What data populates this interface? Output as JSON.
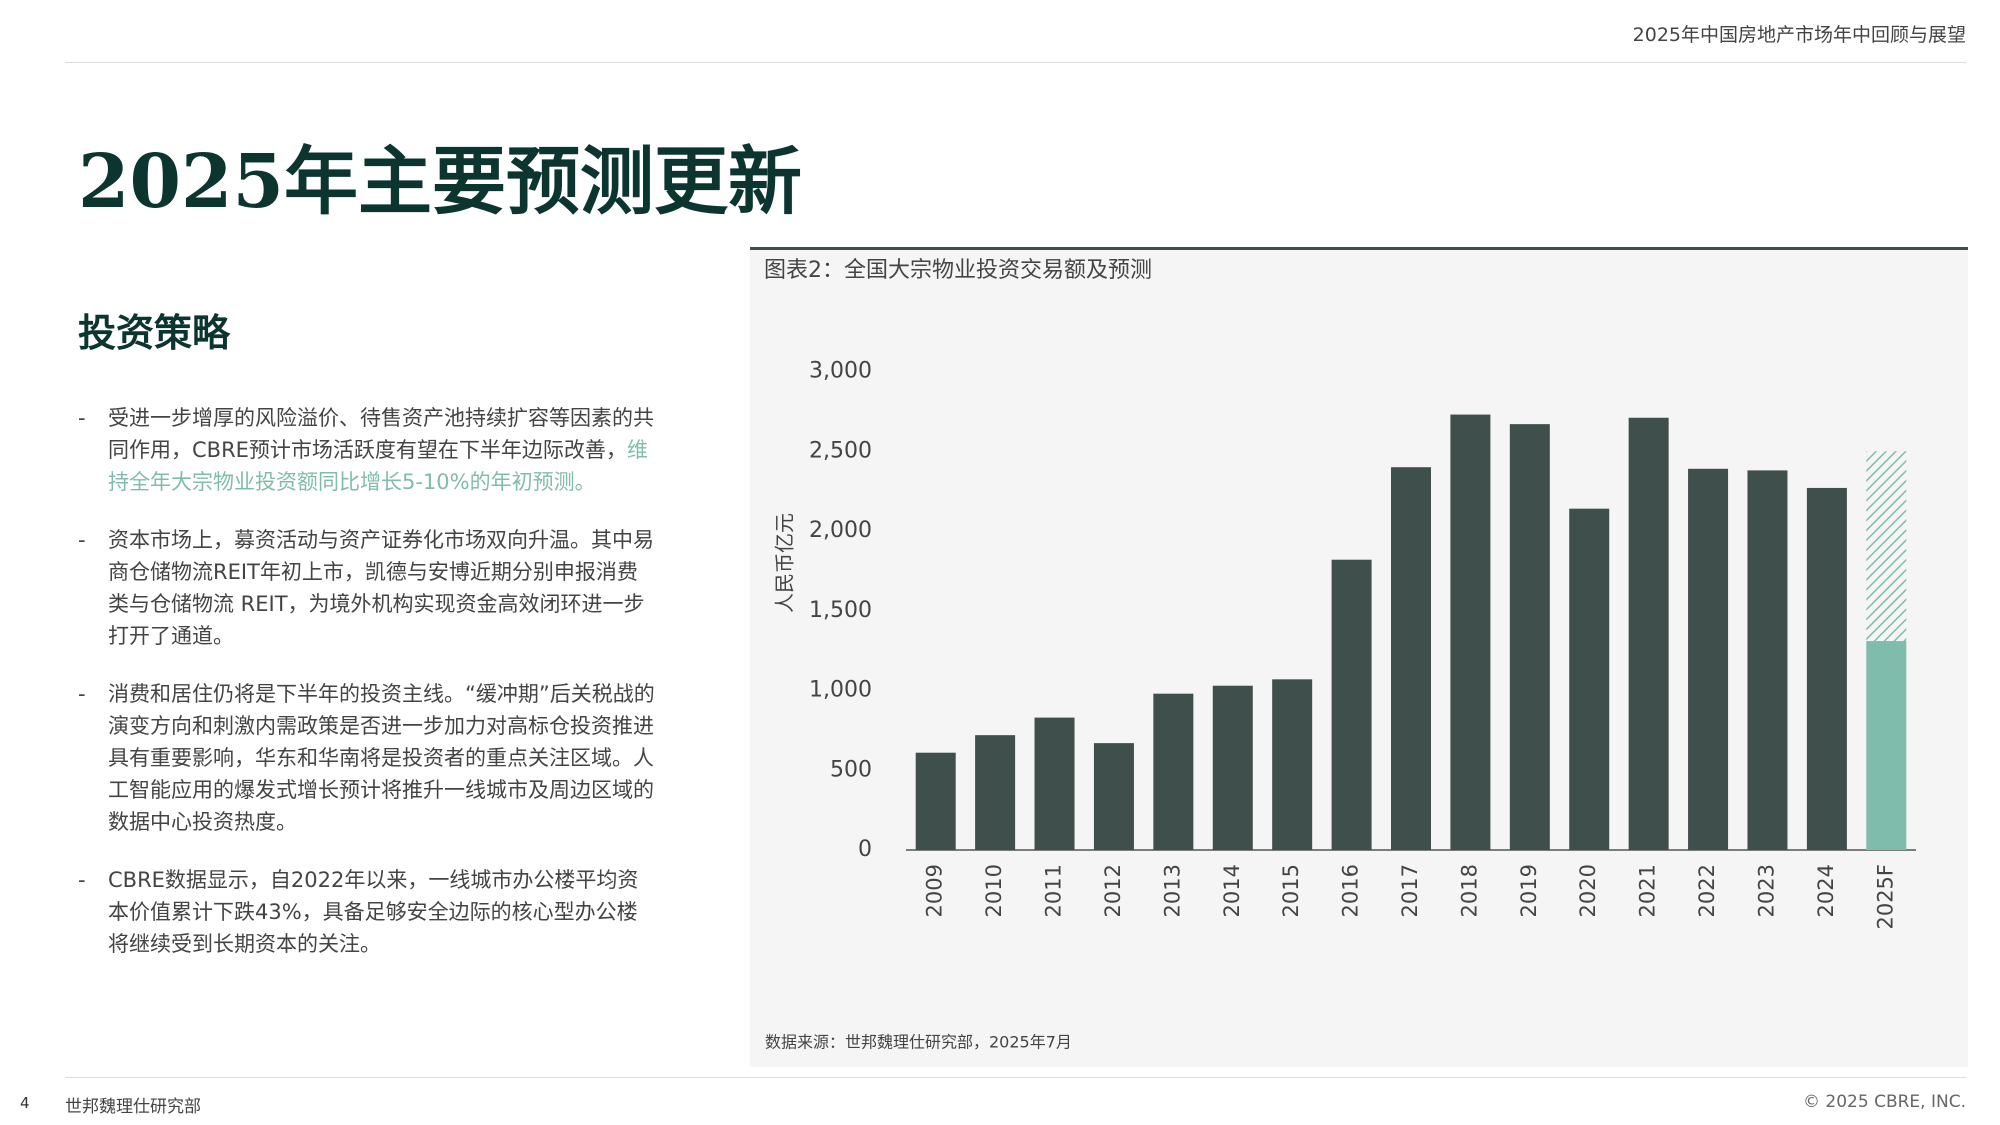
{
  "header": {
    "report": "2025年中国房地产市场年中回顾与展望"
  },
  "title": "2025年主要预测更新",
  "section": "投资策略",
  "bullets": [
    {
      "text": "受进一步增厚的风险溢价、待售资产池持续扩容等因素的共同作用，CBRE预计市场活跃度有望在下半年边际改善，",
      "highlight": "维持全年大宗物业投资额同比增长5-10%的年初预测。"
    },
    {
      "text": "资本市场上，募资活动与资产证券化市场双向升温。其中易商仓储物流REIT年初上市，凯德与安博近期分别申报消费类与仓储物流 REIT，为境外机构实现资金高效闭环进一步打开了通道。"
    },
    {
      "text": "消费和居住仍将是下半年的投资主线。“缓冲期”后关税战的演变方向和刺激内需政策是否进一步加力对高标仓投资推进具有重要影响，华东和华南将是投资者的重点关注区域。人工智能应用的爆发式增长预计将推升一线城市及周边区域的数据中心投资热度。"
    },
    {
      "text": "CBRE数据显示，自2022年以来，一线城市办公楼平均资本价值累计下跌43%，具备足够安全边际的核心型办公楼将继续受到长期资本的关注。"
    }
  ],
  "chart_data": {
    "type": "bar",
    "stacked": true,
    "title": "图表2：全国大宗物业投资交易额及预测",
    "y_label": "人民币亿元",
    "source": "数据来源：世邦魏理仕研究部，2025年7月",
    "categories": [
      "2009",
      "2010",
      "2011",
      "2012",
      "2013",
      "2014",
      "2015",
      "2016",
      "2017",
      "2018",
      "2019",
      "2020",
      "2021",
      "2022",
      "2023",
      "2024",
      "2025F"
    ],
    "series": [
      {
        "color": "#3e4f4c",
        "values": [
          610,
          720,
          830,
          670,
          980,
          1030,
          1070,
          1820,
          2400,
          2730,
          2670,
          2140,
          2710,
          2390,
          2380,
          2270,
          null
        ]
      },
      {
        "color": "#80bcab",
        "values": [
          null,
          null,
          null,
          null,
          null,
          null,
          null,
          null,
          null,
          null,
          null,
          null,
          null,
          null,
          null,
          null,
          1310
        ]
      },
      {
        "color": "#80bcab",
        "pattern": "hatch",
        "values": [
          null,
          null,
          null,
          null,
          null,
          null,
          null,
          null,
          null,
          null,
          null,
          null,
          null,
          null,
          null,
          null,
          1190
        ]
      }
    ],
    "ylim": [
      0,
      3000
    ],
    "yticks": [
      0,
      500,
      {
        "value": 1000,
        "label": "1,000"
      },
      {
        "value": 1500,
        "label": "1,500"
      },
      {
        "value": 2000,
        "label": "2,000"
      },
      {
        "value": 2500,
        "label": "2,500"
      },
      {
        "value": 3000,
        "label": "3,000"
      }
    ]
  },
  "footer": {
    "page": "4",
    "org": "世邦魏理仕研究部",
    "copyright": "© 2025 CBRE, INC."
  }
}
